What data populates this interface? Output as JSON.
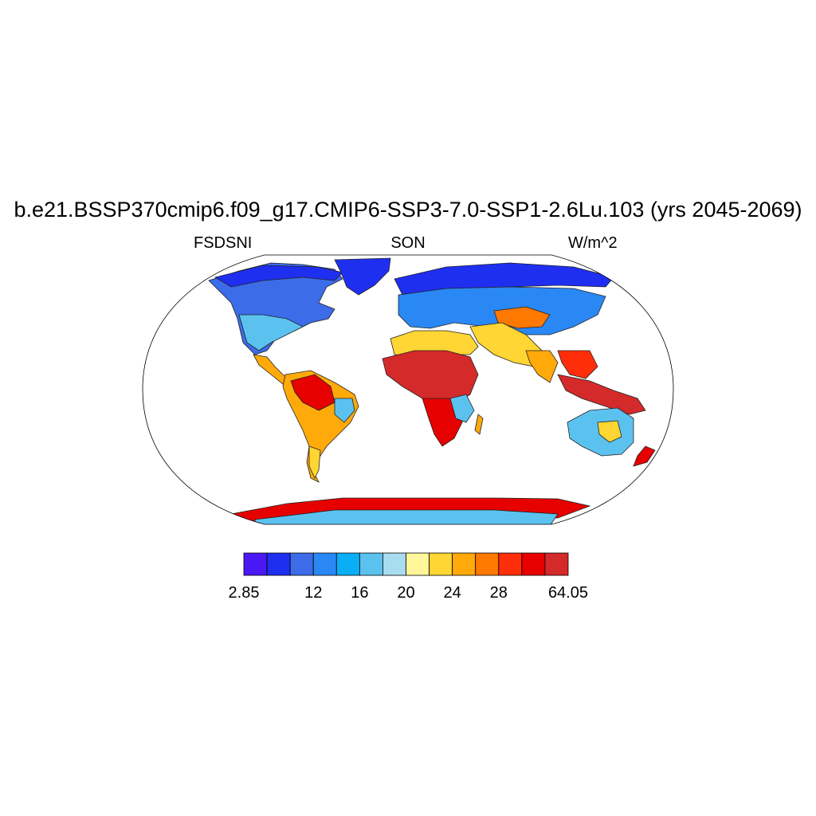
{
  "title": "b.e21.BSSP370cmip6.f09_g17.CMIP6-SSP3-7.0-SSP1-2.6Lu.103 (yrs 2045-2069)",
  "subtitle_left": "FSDSNI",
  "subtitle_center": "SON",
  "subtitle_right": "W/m^2",
  "map": {
    "projection": "Robinson",
    "colors": {
      "ocean": "#ffffff",
      "coastline": "#000000"
    }
  },
  "colorbar": {
    "colors": [
      "#4a17f5",
      "#1f2ff0",
      "#3c6ce8",
      "#2a88f5",
      "#0aaef7",
      "#5bc2f0",
      "#a9dcef",
      "#fff79a",
      "#ffd633",
      "#ffa90a",
      "#ff7800",
      "#ff2e0a",
      "#e60000",
      "#d42a2a"
    ],
    "labels": [
      "2.85",
      "12",
      "16",
      "20",
      "24",
      "28",
      "64.05"
    ],
    "label_boxes": [
      0,
      3,
      5,
      7,
      9,
      11,
      14
    ]
  }
}
